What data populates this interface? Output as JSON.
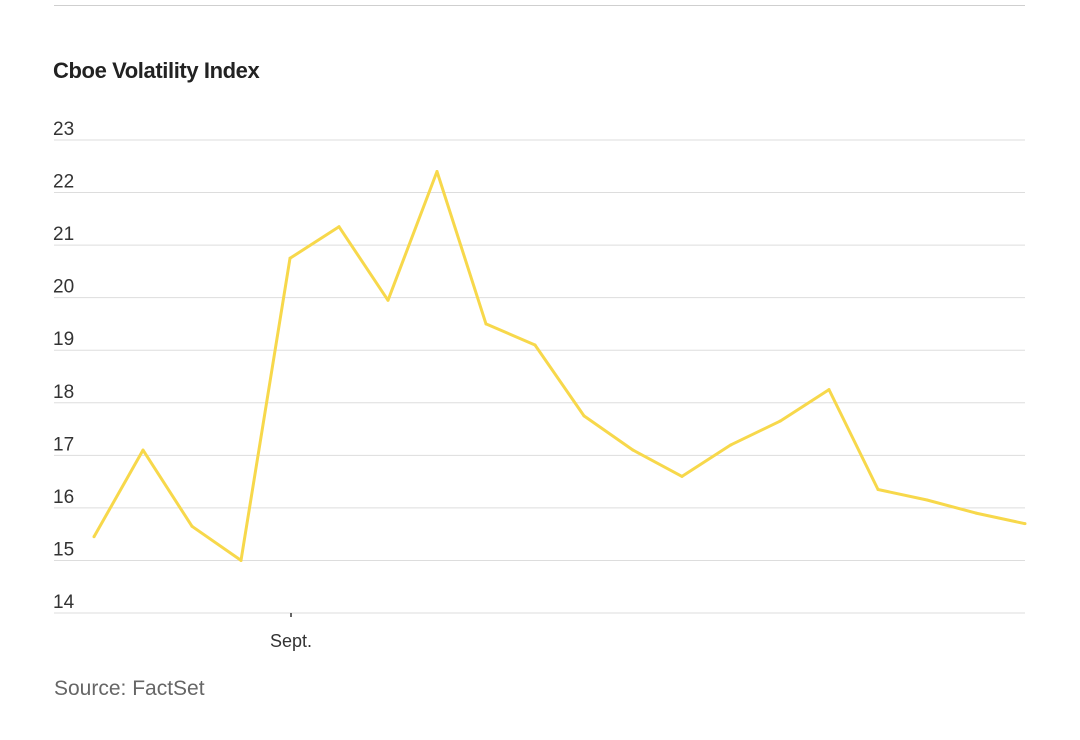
{
  "chart_data": {
    "type": "line",
    "title": "Cboe Volatility Index",
    "xlabel": "",
    "ylabel": "",
    "ylim": [
      14,
      23
    ],
    "y_ticks": [
      14,
      15,
      16,
      17,
      18,
      19,
      20,
      21,
      22,
      23
    ],
    "x_tick_labels": [
      {
        "label": "Sept.",
        "index": 4
      }
    ],
    "grid": true,
    "legend": "none",
    "series": [
      {
        "color": "#F7D84B",
        "values": [
          15.45,
          17.1,
          15.65,
          15.0,
          20.75,
          21.35,
          19.95,
          22.4,
          19.5,
          19.1,
          17.75,
          17.1,
          16.6,
          17.2,
          17.65,
          18.25,
          16.35,
          16.15,
          15.9,
          15.7
        ]
      }
    ],
    "source": "Source: FactSet"
  }
}
